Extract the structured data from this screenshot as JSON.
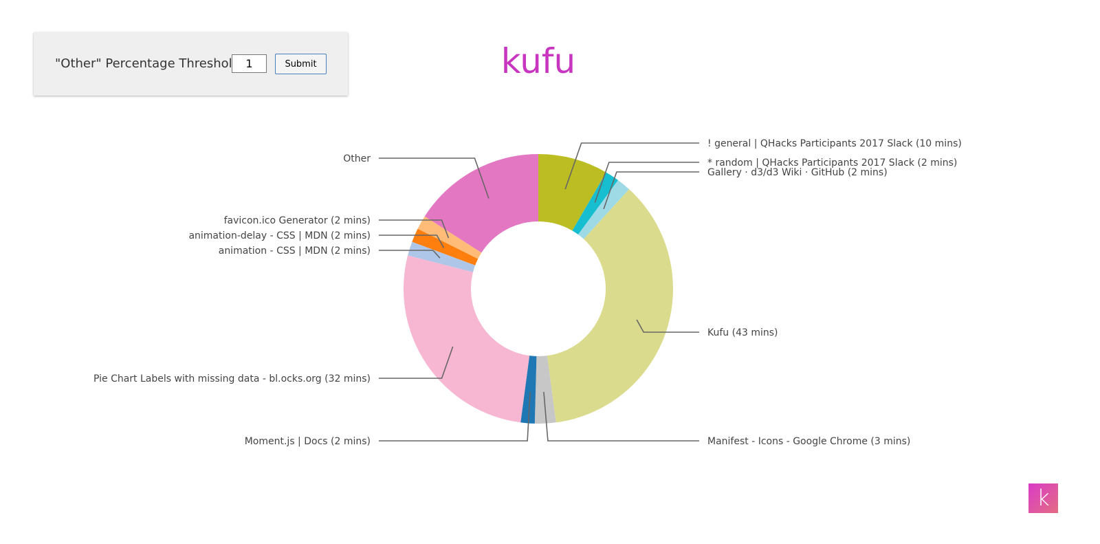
{
  "threshold": {
    "label": "\"Other\" Percentage Threshold:",
    "value": "1",
    "submit_label": "Submit"
  },
  "title": "kufu",
  "logo": {
    "letter": "k"
  },
  "colors": {
    "title": "#c836c0",
    "panel_background": "#efefef"
  },
  "chart_data": {
    "type": "pie",
    "donut": true,
    "title": "",
    "slices": [
      {
        "label": "! general | QHacks Participants 2017 Slack (10 mins)",
        "value": 10,
        "color": "#bcbd22"
      },
      {
        "label": "* random | QHacks Participants 2017 Slack (2 mins)",
        "value": 2,
        "color": "#17becf"
      },
      {
        "label": "Gallery · d3/d3 Wiki · GitHub (2 mins)",
        "value": 2,
        "color": "#9edae5"
      },
      {
        "label": "Kufu (43 mins)",
        "value": 43,
        "color": "#dbdb8d"
      },
      {
        "label": "Manifest - Icons - Google Chrome (3 mins)",
        "value": 3,
        "color": "#c7c7c7"
      },
      {
        "label": "Moment.js | Docs (2 mins)",
        "value": 2,
        "color": "#1f77b4"
      },
      {
        "label": "Pie Chart Labels with missing data - bl.ocks.org (32 mins)",
        "value": 32,
        "color": "#f7b6d2"
      },
      {
        "label": "animation - CSS | MDN (2 mins)",
        "value": 2,
        "color": "#aec7e8"
      },
      {
        "label": "animation-delay - CSS | MDN (2 mins)",
        "value": 2,
        "color": "#ff7f0e"
      },
      {
        "label": "favicon.ico Generator (2 mins)",
        "value": 2,
        "color": "#ffbb78"
      },
      {
        "label": "Other",
        "value": 19,
        "color": "#e377c2"
      }
    ]
  }
}
